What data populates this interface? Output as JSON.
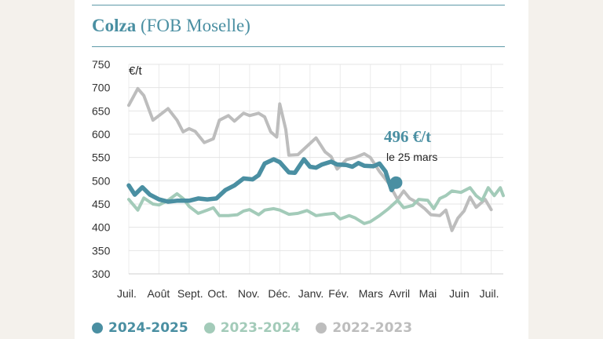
{
  "chart_data": {
    "type": "line",
    "title": "Colza",
    "subtitle": "(FOB Moselle)",
    "ylabel": "€/t",
    "ylim": [
      300,
      750
    ],
    "yticks": [
      300,
      350,
      400,
      450,
      500,
      550,
      600,
      650,
      700,
      750
    ],
    "xlim": [
      0,
      12.4
    ],
    "xticks": [
      {
        "label": "Juil.",
        "pos": 0
      },
      {
        "label": "Août",
        "pos": 1
      },
      {
        "label": "Sept.",
        "pos": 2
      },
      {
        "label": "Oct.",
        "pos": 3
      },
      {
        "label": "Nov.",
        "pos": 4
      },
      {
        "label": "Déc.",
        "pos": 5
      },
      {
        "label": "Janv.",
        "pos": 6
      },
      {
        "label": "Fév.",
        "pos": 7
      },
      {
        "label": "Mars",
        "pos": 8
      },
      {
        "label": "Avril",
        "pos": 9
      },
      {
        "label": "Mai",
        "pos": 10
      },
      {
        "label": "Juin",
        "pos": 11
      },
      {
        "label": "Juil.",
        "pos": 12
      }
    ],
    "series": [
      {
        "name": "2022-2023",
        "color": "#bdbdbd",
        "points": [
          [
            0,
            662
          ],
          [
            0.3,
            698
          ],
          [
            0.5,
            683
          ],
          [
            0.8,
            630
          ],
          [
            1,
            640
          ],
          [
            1.3,
            655
          ],
          [
            1.6,
            630
          ],
          [
            1.8,
            605
          ],
          [
            2,
            612
          ],
          [
            2.2,
            606
          ],
          [
            2.5,
            582
          ],
          [
            2.8,
            590
          ],
          [
            3,
            630
          ],
          [
            3.3,
            640
          ],
          [
            3.5,
            628
          ],
          [
            3.8,
            645
          ],
          [
            4,
            640
          ],
          [
            4.3,
            645
          ],
          [
            4.5,
            637
          ],
          [
            4.7,
            605
          ],
          [
            4.9,
            594
          ],
          [
            5,
            665
          ],
          [
            5.2,
            610
          ],
          [
            5.3,
            555
          ],
          [
            5.6,
            556
          ],
          [
            5.9,
            574
          ],
          [
            6.2,
            592
          ],
          [
            6.5,
            562
          ],
          [
            6.7,
            552
          ],
          [
            6.9,
            525
          ],
          [
            7.2,
            545
          ],
          [
            7.5,
            550
          ],
          [
            7.8,
            558
          ],
          [
            8,
            550
          ],
          [
            8.3,
            520
          ],
          [
            8.6,
            495
          ],
          [
            8.9,
            460
          ],
          [
            9.1,
            478
          ],
          [
            9.3,
            462
          ],
          [
            9.5,
            455
          ],
          [
            9.8,
            440
          ],
          [
            10,
            427
          ],
          [
            10.3,
            425
          ],
          [
            10.5,
            437
          ],
          [
            10.7,
            393
          ],
          [
            10.9,
            420
          ],
          [
            11.1,
            435
          ],
          [
            11.3,
            465
          ],
          [
            11.5,
            443
          ],
          [
            11.8,
            460
          ],
          [
            12,
            438
          ]
        ]
      },
      {
        "name": "2023-2024",
        "color": "#a3cbb9",
        "points": [
          [
            0,
            460
          ],
          [
            0.3,
            437
          ],
          [
            0.5,
            463
          ],
          [
            0.8,
            450
          ],
          [
            1,
            448
          ],
          [
            1.3,
            458
          ],
          [
            1.6,
            472
          ],
          [
            1.8,
            462
          ],
          [
            2,
            445
          ],
          [
            2.3,
            430
          ],
          [
            2.6,
            437
          ],
          [
            2.8,
            442
          ],
          [
            3,
            425
          ],
          [
            3.3,
            425
          ],
          [
            3.6,
            427
          ],
          [
            3.8,
            435
          ],
          [
            4,
            438
          ],
          [
            4.3,
            427
          ],
          [
            4.5,
            437
          ],
          [
            4.8,
            440
          ],
          [
            5,
            437
          ],
          [
            5.3,
            428
          ],
          [
            5.6,
            430
          ],
          [
            5.9,
            436
          ],
          [
            6.2,
            425
          ],
          [
            6.5,
            428
          ],
          [
            6.8,
            430
          ],
          [
            7,
            418
          ],
          [
            7.3,
            425
          ],
          [
            7.5,
            420
          ],
          [
            7.8,
            408
          ],
          [
            8,
            412
          ],
          [
            8.3,
            425
          ],
          [
            8.6,
            440
          ],
          [
            8.9,
            458
          ],
          [
            9.1,
            442
          ],
          [
            9.4,
            447
          ],
          [
            9.6,
            460
          ],
          [
            9.9,
            458
          ],
          [
            10.1,
            440
          ],
          [
            10.3,
            462
          ],
          [
            10.5,
            468
          ],
          [
            10.7,
            478
          ],
          [
            11,
            475
          ],
          [
            11.3,
            485
          ],
          [
            11.5,
            468
          ],
          [
            11.7,
            458
          ],
          [
            11.9,
            485
          ],
          [
            12.1,
            468
          ],
          [
            12.3,
            485
          ],
          [
            12.4,
            468
          ]
        ]
      },
      {
        "name": "2024-2025",
        "color": "#4a8fa2",
        "points": [
          [
            0,
            490
          ],
          [
            0.2,
            470
          ],
          [
            0.45,
            486
          ],
          [
            0.7,
            470
          ],
          [
            1,
            460
          ],
          [
            1.3,
            455
          ],
          [
            1.6,
            457
          ],
          [
            2,
            457
          ],
          [
            2.3,
            462
          ],
          [
            2.6,
            460
          ],
          [
            2.9,
            462
          ],
          [
            3.2,
            480
          ],
          [
            3.5,
            490
          ],
          [
            3.8,
            505
          ],
          [
            4.1,
            503
          ],
          [
            4.3,
            512
          ],
          [
            4.5,
            537
          ],
          [
            4.8,
            546
          ],
          [
            5,
            540
          ],
          [
            5.3,
            518
          ],
          [
            5.5,
            517
          ],
          [
            5.8,
            546
          ],
          [
            6,
            530
          ],
          [
            6.2,
            528
          ],
          [
            6.4,
            535
          ],
          [
            6.7,
            541
          ],
          [
            6.9,
            535
          ],
          [
            7.2,
            534
          ],
          [
            7.4,
            530
          ],
          [
            7.6,
            538
          ],
          [
            7.8,
            532
          ],
          [
            8.1,
            531
          ],
          [
            8.3,
            537
          ],
          [
            8.5,
            520
          ],
          [
            8.7,
            480
          ],
          [
            8.85,
            496
          ]
        ]
      }
    ],
    "annotation": {
      "value": "496 €/t",
      "date": "le 25 mars",
      "x": 8.85,
      "y": 496
    }
  }
}
